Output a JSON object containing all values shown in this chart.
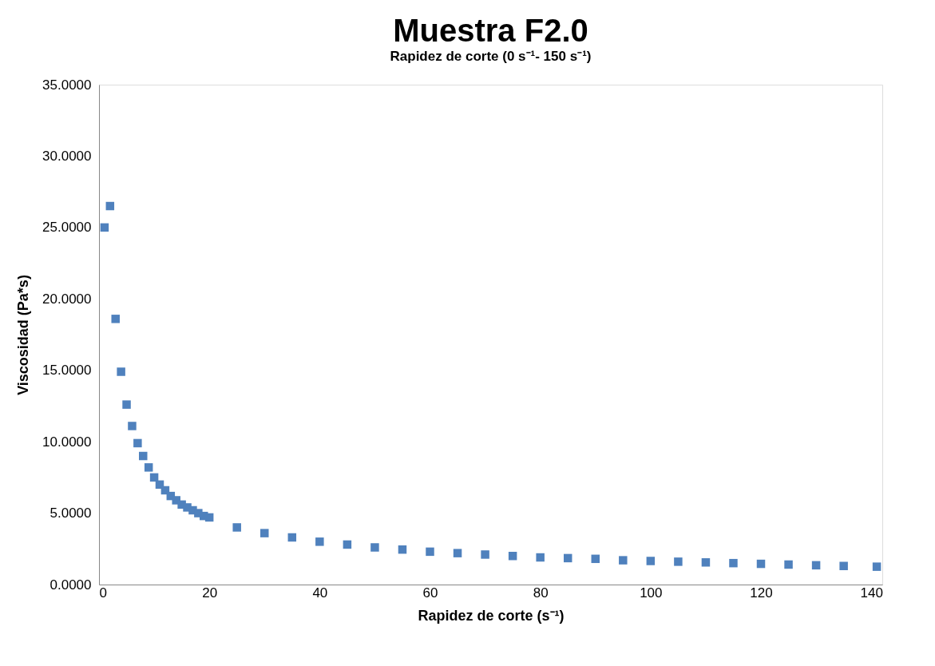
{
  "chart_data": {
    "type": "scatter",
    "title": "Muestra F2.0",
    "subtitle": "Rapidez de corte (0 s⁻¹- 150 s⁻¹)",
    "xlabel": "Rapidez de corte (s⁻¹)",
    "ylabel": "Viscosidad (Pa*s)",
    "x": [
      1,
      2,
      3,
      4,
      5,
      6,
      7,
      8,
      9,
      10,
      11,
      12,
      13,
      14,
      15,
      16,
      17,
      18,
      19,
      20,
      25,
      30,
      35,
      40,
      45,
      50,
      55,
      60,
      65,
      70,
      75,
      80,
      85,
      90,
      95,
      100,
      105,
      110,
      115,
      120,
      125,
      130,
      135,
      141
    ],
    "series": [
      {
        "color": "#4f81bd",
        "values": [
          25.0,
          26.5,
          18.6,
          14.9,
          12.6,
          11.1,
          9.9,
          9.0,
          8.2,
          7.5,
          7.0,
          6.6,
          6.2,
          5.9,
          5.6,
          5.4,
          5.2,
          5.0,
          4.8,
          4.7,
          4.0,
          3.6,
          3.3,
          3.0,
          2.8,
          2.6,
          2.45,
          2.3,
          2.2,
          2.1,
          2.0,
          1.9,
          1.85,
          1.8,
          1.7,
          1.65,
          1.6,
          1.55,
          1.5,
          1.45,
          1.4,
          1.35,
          1.3,
          1.25
        ]
      }
    ],
    "xlim": [
      0,
      142
    ],
    "xticks": [
      0,
      20,
      40,
      60,
      80,
      100,
      120,
      140
    ],
    "ylim": [
      0,
      35
    ],
    "yticks": [
      {
        "value": 0,
        "label": "0.0000"
      },
      {
        "value": 5,
        "label": "5.0000"
      },
      {
        "value": 10,
        "label": "10.0000"
      },
      {
        "value": 15,
        "label": "15.0000"
      },
      {
        "value": 20,
        "label": "20.0000"
      },
      {
        "value": 25,
        "label": "25.0000"
      },
      {
        "value": 30,
        "label": "30.0000"
      },
      {
        "value": 35,
        "label": "35.0000"
      }
    ],
    "marker": "square",
    "grid": false
  }
}
